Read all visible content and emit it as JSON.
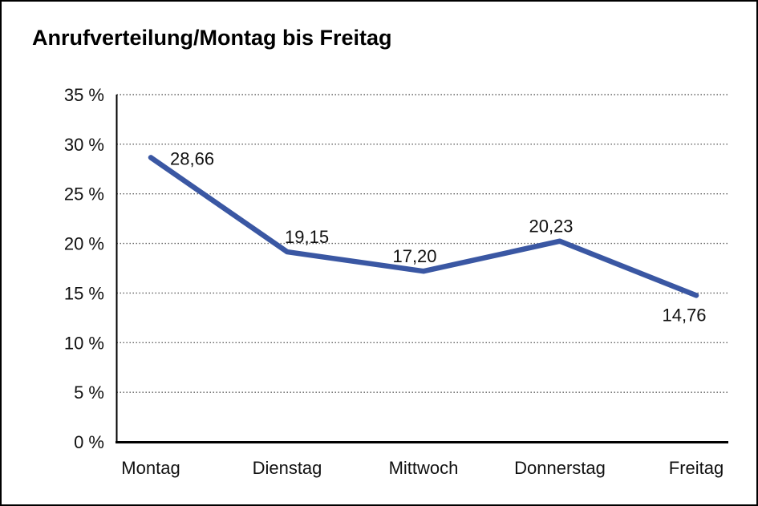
{
  "page": {
    "title": "Anrufverteilung/Montag bis Freitag"
  },
  "chart_data": {
    "type": "line",
    "title": "Anrufverteilung/Montag bis Freitag",
    "categories": [
      "Montag",
      "Dienstag",
      "Mittwoch",
      "Donnerstag",
      "Freitag"
    ],
    "values": [
      28.66,
      19.15,
      17.2,
      20.23,
      14.76
    ],
    "value_labels": [
      "28,66",
      "19,15",
      "17,20",
      "20,23",
      "14,76"
    ],
    "series_name": "Anrufverteilung",
    "xlabel": "",
    "ylabel": "",
    "ylim": [
      0,
      35
    ],
    "yticks": [
      0,
      5,
      10,
      15,
      20,
      25,
      30,
      35
    ],
    "ytick_labels": [
      "0 %",
      "5 %",
      "10 %",
      "15 %",
      "20 %",
      "25 %",
      "30 %",
      "35 %"
    ],
    "grid": "horizontal-dotted",
    "legend": "none",
    "line_color": "#3A57A3",
    "label_color": "#111111",
    "axis_color": "#000000"
  }
}
